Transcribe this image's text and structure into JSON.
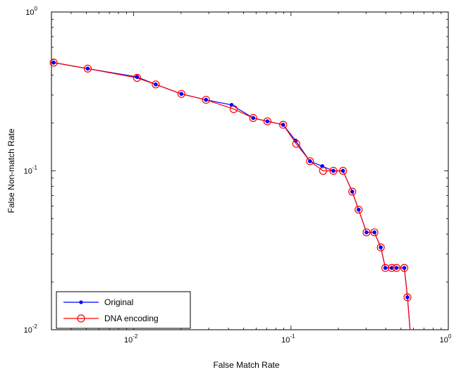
{
  "chart_data": {
    "type": "line",
    "title": "",
    "xlabel": "False Match Rate",
    "ylabel": "False Non-match Rate",
    "xscale": "log",
    "yscale": "log",
    "xlim": [
      0.003,
      1
    ],
    "ylim": [
      0.01,
      1
    ],
    "x_ticks": [
      {
        "value": 0.01,
        "base": "10",
        "exp": "-2"
      },
      {
        "value": 0.1,
        "base": "10",
        "exp": "-1"
      },
      {
        "value": 1,
        "base": "10",
        "exp": "0"
      }
    ],
    "y_ticks": [
      {
        "value": 0.01,
        "base": "10",
        "exp": "-2"
      },
      {
        "value": 0.1,
        "base": "10",
        "exp": "-1"
      },
      {
        "value": 1,
        "base": "10",
        "exp": "0"
      }
    ],
    "grid": false,
    "legend_position": "bottom-left",
    "series": [
      {
        "name": "Original",
        "color": "#0000ff",
        "marker": "dot",
        "x": [
          0.0031,
          0.0051,
          0.0105,
          0.0138,
          0.0201,
          0.0288,
          0.0419,
          0.0575,
          0.0708,
          0.0891,
          0.107,
          0.132,
          0.158,
          0.186,
          0.214,
          0.245,
          0.269,
          0.302,
          0.339,
          0.372,
          0.398,
          0.437,
          0.468,
          0.525,
          0.55,
          0.575
        ],
        "y": [
          0.48,
          0.44,
          0.39,
          0.35,
          0.305,
          0.28,
          0.26,
          0.215,
          0.205,
          0.195,
          0.155,
          0.115,
          0.107,
          0.1,
          0.1,
          0.074,
          0.057,
          0.041,
          0.041,
          0.033,
          0.0245,
          0.0245,
          0.0245,
          0.0245,
          0.016,
          0.0092
        ]
      },
      {
        "name": "DNA encoding",
        "color": "#ff0000",
        "marker": "circle",
        "x": [
          0.0031,
          0.0051,
          0.0105,
          0.0138,
          0.0201,
          0.0288,
          0.0432,
          0.0575,
          0.0708,
          0.0891,
          0.108,
          0.132,
          0.16,
          0.186,
          0.214,
          0.245,
          0.269,
          0.302,
          0.339,
          0.372,
          0.398,
          0.437,
          0.468,
          0.525,
          0.55,
          0.575
        ],
        "y": [
          0.48,
          0.44,
          0.385,
          0.35,
          0.305,
          0.28,
          0.245,
          0.215,
          0.205,
          0.195,
          0.148,
          0.115,
          0.1,
          0.1,
          0.1,
          0.074,
          0.057,
          0.041,
          0.041,
          0.033,
          0.0245,
          0.0245,
          0.0245,
          0.0245,
          0.016,
          0.0092
        ]
      }
    ]
  }
}
